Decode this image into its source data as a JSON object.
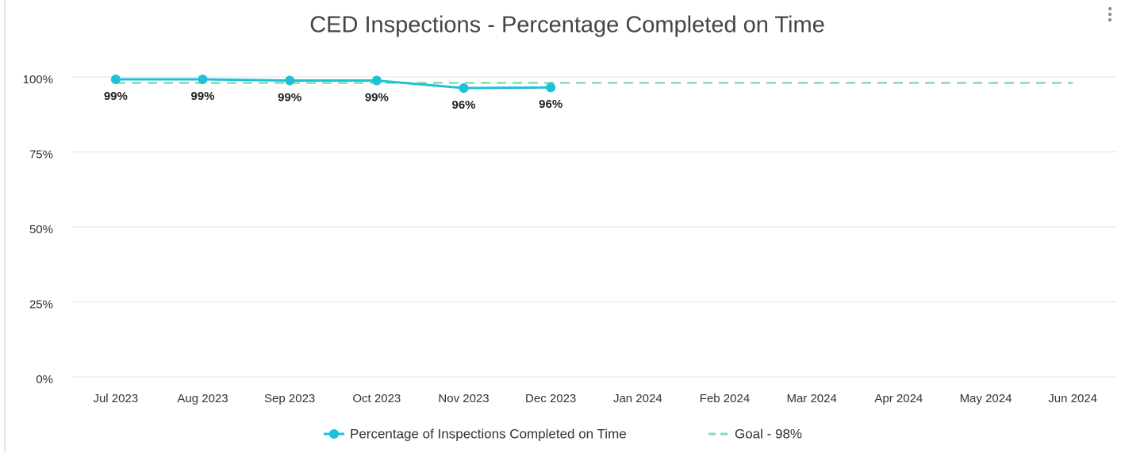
{
  "chart_data": {
    "type": "line",
    "title": "CED Inspections - Percentage Completed on Time",
    "categories": [
      "Jul 2023",
      "Aug 2023",
      "Sep 2023",
      "Oct 2023",
      "Nov 2023",
      "Dec 2023",
      "Jan 2024",
      "Feb 2024",
      "Mar 2024",
      "Apr 2024",
      "May 2024",
      "Jun 2024"
    ],
    "series": [
      {
        "name": "Percentage of Inspections Completed on Time",
        "color": "#1fc1d8",
        "values": [
          99.2,
          99.2,
          98.8,
          98.8,
          96.3,
          96.5,
          null,
          null,
          null,
          null,
          null,
          null
        ],
        "value_labels": [
          "99%",
          "99%",
          "99%",
          "99%",
          "96%",
          "96%",
          null,
          null,
          null,
          null,
          null,
          null
        ]
      },
      {
        "name": "Goal - 98%",
        "color": "#7ee0a8",
        "dashed": true,
        "values": [
          98,
          98,
          98,
          98,
          98,
          98,
          98,
          98,
          98,
          98,
          98,
          98
        ]
      }
    ],
    "ylim": [
      0,
      100
    ],
    "yticks": [
      {
        "value": 0,
        "label": "0%"
      },
      {
        "value": 25,
        "label": "25%"
      },
      {
        "value": 50,
        "label": "50%"
      },
      {
        "value": 75,
        "label": "75%"
      },
      {
        "value": 100,
        "label": "100%"
      }
    ],
    "grid": true,
    "legend": "bottom"
  }
}
